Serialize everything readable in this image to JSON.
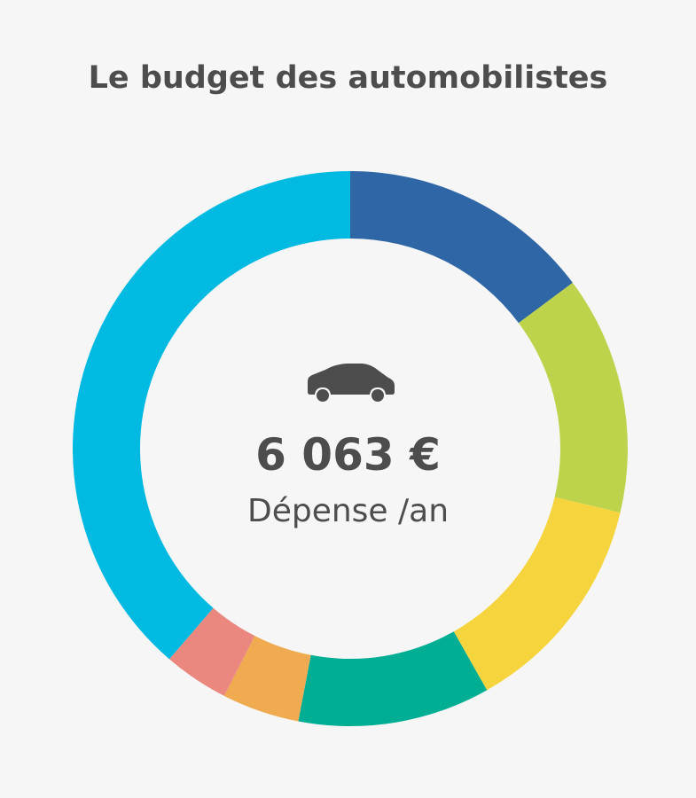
{
  "chart_data": {
    "type": "pie",
    "title": "Le budget des automobilistes",
    "center": {
      "value": "6 063 €",
      "label": "Dépense /an"
    },
    "slices": [
      {
        "color": "#2e66a6",
        "share": 0.148
      },
      {
        "color": "#bdd34b",
        "share": 0.139
      },
      {
        "color": "#f6d43e",
        "share": 0.131
      },
      {
        "color": "#00ae94",
        "share": 0.112
      },
      {
        "color": "#f0ab50",
        "share": 0.045
      },
      {
        "color": "#ea877f",
        "share": 0.038
      },
      {
        "color": "#00bae1",
        "share": 0.387
      }
    ]
  },
  "icons": {
    "center_icon": "car-icon"
  }
}
